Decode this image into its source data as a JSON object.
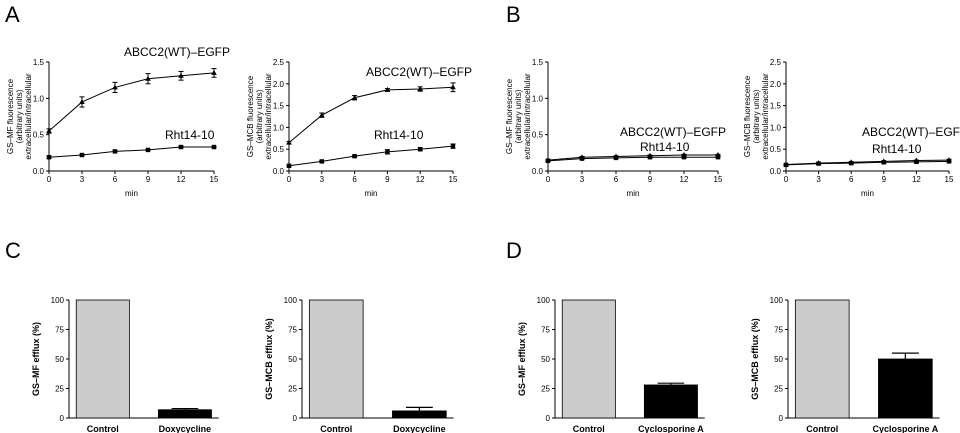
{
  "panels": [
    {
      "letter": "A"
    },
    {
      "letter": "B"
    },
    {
      "letter": "C"
    },
    {
      "letter": "D"
    }
  ],
  "chart_data": [
    {
      "id": "A1",
      "type": "line",
      "xlabel": "min",
      "ylabel": [
        "GS–MF fluorescence",
        "(arbitrary units)",
        "extracellular/intracellular"
      ],
      "x": [
        0,
        3,
        6,
        9,
        12,
        15
      ],
      "xticks": [
        "0",
        "3",
        "6",
        "9",
        "12",
        "15"
      ],
      "ylim": [
        0,
        1.5
      ],
      "yticks": [
        "0.0",
        "0.5",
        "1.0",
        "1.5"
      ],
      "ytick_values": [
        0,
        0.5,
        1.0,
        1.5
      ],
      "series": [
        {
          "name": "ABCC2(WT)–EGFP",
          "values": [
            0.55,
            0.95,
            1.15,
            1.27,
            1.31,
            1.35
          ],
          "errors": [
            0.03,
            0.07,
            0.07,
            0.07,
            0.06,
            0.06
          ],
          "marker": "triangle"
        },
        {
          "name": "Rht14-10",
          "values": [
            0.19,
            0.22,
            0.27,
            0.29,
            0.33,
            0.33
          ],
          "errors": [
            0.02,
            0.01,
            0.01,
            0.01,
            0.01,
            0.01
          ],
          "marker": "square"
        }
      ]
    },
    {
      "id": "A2",
      "type": "line",
      "xlabel": "min",
      "ylabel": [
        "GS–MCB fluorescence",
        "(arbitrary units)",
        "extracellular/intracellular"
      ],
      "x": [
        0,
        3,
        6,
        9,
        12,
        15
      ],
      "xticks": [
        "0",
        "3",
        "6",
        "9",
        "12",
        "15"
      ],
      "ylim": [
        0,
        2.5
      ],
      "yticks": [
        "0.0",
        "0.5",
        "1.0",
        "1.5",
        "2.0",
        "2.5"
      ],
      "ytick_values": [
        0,
        0.5,
        1.0,
        1.5,
        2.0,
        2.5
      ],
      "series": [
        {
          "name": "ABCC2(WT)–EGFP",
          "values": [
            0.65,
            1.28,
            1.68,
            1.86,
            1.88,
            1.92
          ],
          "errors": [
            0.03,
            0.05,
            0.05,
            0.03,
            0.05,
            0.1
          ],
          "marker": "triangle"
        },
        {
          "name": "Rht14-10",
          "values": [
            0.12,
            0.22,
            0.34,
            0.44,
            0.5,
            0.57
          ],
          "errors": [
            0.02,
            0.02,
            0.02,
            0.05,
            0.04,
            0.05
          ],
          "marker": "square"
        }
      ]
    },
    {
      "id": "B1",
      "type": "line",
      "xlabel": "min",
      "ylabel": [
        "GS–MF fluorescence",
        "(arbitrary units)",
        "extracellular/intracellular"
      ],
      "x": [
        0,
        3,
        6,
        9,
        12,
        15
      ],
      "xticks": [
        "0",
        "3",
        "6",
        "9",
        "12",
        "15"
      ],
      "ylim": [
        0,
        1.5
      ],
      "yticks": [
        "0.0",
        "0.5",
        "1.0",
        "1.5"
      ],
      "ytick_values": [
        0,
        0.5,
        1.0,
        1.5
      ],
      "series": [
        {
          "name": "ABCC2(WT)–EGFP",
          "values": [
            0.15,
            0.19,
            0.2,
            0.21,
            0.22,
            0.22
          ],
          "errors": [
            0.01,
            0.01,
            0.01,
            0.01,
            0.01,
            0.01
          ],
          "marker": "triangle"
        },
        {
          "name": "Rht14-10",
          "values": [
            0.14,
            0.17,
            0.18,
            0.19,
            0.19,
            0.19
          ],
          "errors": [
            0.01,
            0.01,
            0.01,
            0.01,
            0.01,
            0.01
          ],
          "marker": "square"
        }
      ]
    },
    {
      "id": "B2",
      "type": "line",
      "xlabel": "min",
      "ylabel": [
        "GS–MCB fluorescence",
        "(arbitrary units)",
        "extracellular/intracellular"
      ],
      "x": [
        0,
        3,
        6,
        9,
        12,
        15
      ],
      "xticks": [
        "0",
        "3",
        "6",
        "9",
        "12",
        "15"
      ],
      "ylim": [
        0,
        2.5
      ],
      "yticks": [
        "0.0",
        "0.5",
        "1.0",
        "1.5",
        "2.0",
        "2.5"
      ],
      "ytick_values": [
        0,
        0.5,
        1.0,
        1.5,
        2.0,
        2.5
      ],
      "series": [
        {
          "name": "ABCC2(WT)–EGFP",
          "values": [
            0.15,
            0.18,
            0.2,
            0.22,
            0.24,
            0.25
          ],
          "errors": [
            0.01,
            0.01,
            0.01,
            0.01,
            0.01,
            0.02
          ],
          "marker": "triangle"
        },
        {
          "name": "Rht14-10",
          "values": [
            0.14,
            0.17,
            0.18,
            0.2,
            0.21,
            0.22
          ],
          "errors": [
            0.01,
            0.01,
            0.01,
            0.01,
            0.01,
            0.01
          ],
          "marker": "square"
        }
      ]
    },
    {
      "id": "C1",
      "type": "bar",
      "ylabel": "GS–MF efflux (%)",
      "categories": [
        "Control",
        "Doxycycline"
      ],
      "values": [
        100,
        7
      ],
      "errors": [
        0,
        1
      ],
      "bar_colors": [
        "#cccccc",
        "#000000"
      ],
      "ylim": [
        0,
        100
      ],
      "yticks": [
        "0",
        "25",
        "50",
        "75",
        "100"
      ],
      "ytick_values": [
        0,
        25,
        50,
        75,
        100
      ]
    },
    {
      "id": "C2",
      "type": "bar",
      "ylabel": "GS–MCB efflux (%)",
      "categories": [
        "Control",
        "Doxycycline"
      ],
      "values": [
        100,
        6
      ],
      "errors": [
        0,
        3
      ],
      "bar_colors": [
        "#cccccc",
        "#000000"
      ],
      "ylim": [
        0,
        100
      ],
      "yticks": [
        "0",
        "25",
        "50",
        "75",
        "100"
      ],
      "ytick_values": [
        0,
        25,
        50,
        75,
        100
      ]
    },
    {
      "id": "D1",
      "type": "bar",
      "ylabel": "GS–MF efflux (%)",
      "categories": [
        "Control",
        "Cyclosporine A"
      ],
      "values": [
        100,
        28
      ],
      "errors": [
        0,
        1.5
      ],
      "bar_colors": [
        "#cccccc",
        "#000000"
      ],
      "ylim": [
        0,
        100
      ],
      "yticks": [
        "0",
        "25",
        "50",
        "75",
        "100"
      ],
      "ytick_values": [
        0,
        25,
        50,
        75,
        100
      ]
    },
    {
      "id": "D2",
      "type": "bar",
      "ylabel": "GS–MCB efflux (%)",
      "categories": [
        "Control",
        "Cyclosporine A"
      ],
      "values": [
        100,
        50
      ],
      "errors": [
        0,
        5
      ],
      "bar_colors": [
        "#cccccc",
        "#000000"
      ],
      "ylim": [
        0,
        100
      ],
      "yticks": [
        "0",
        "25",
        "50",
        "75",
        "100"
      ],
      "ytick_values": [
        0,
        25,
        50,
        75,
        100
      ]
    }
  ]
}
